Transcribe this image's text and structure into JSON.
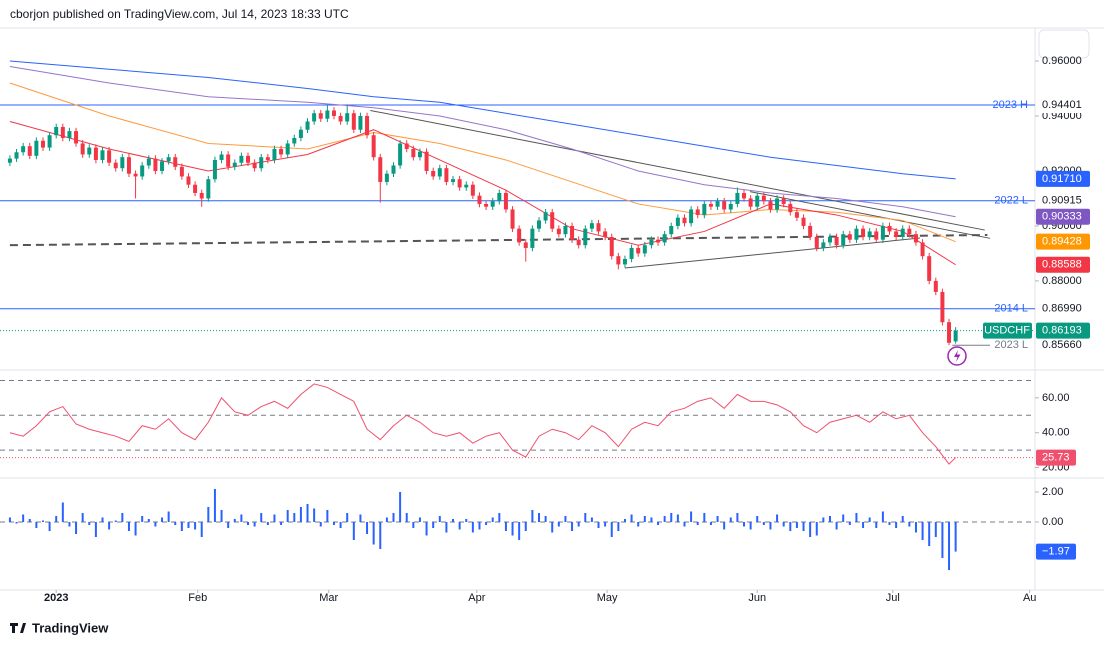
{
  "header": {
    "text": "cborjon published on TradingView.com, Jul 14, 2023 18:33 UTC"
  },
  "footer": {
    "brand": "TradingView"
  },
  "chart_data": {
    "type": "candlestick",
    "symbol": "USDCHF",
    "up_color": "#089981",
    "down_color": "#f23645",
    "xlim": [
      -1.5,
      155
    ],
    "xticks": [
      {
        "value": 7,
        "label": "2023"
      },
      {
        "value": 28.4,
        "label": "Feb"
      },
      {
        "value": 48.2,
        "label": "Mar"
      },
      {
        "value": 70.6,
        "label": "Apr"
      },
      {
        "value": 90.3,
        "label": "May"
      },
      {
        "value": 113,
        "label": "Jun"
      },
      {
        "value": 133.5,
        "label": "Jul"
      },
      {
        "value": 154.2,
        "label": "Au"
      }
    ],
    "ylim": [
      0.8476,
      0.972
    ],
    "yticks": [
      {
        "value": 0.96,
        "label": "0.96000"
      },
      {
        "value": 0.94,
        "label": "0.94000"
      },
      {
        "value": 0.92,
        "label": "0.92000"
      },
      {
        "value": 0.9,
        "label": "0.90000"
      },
      {
        "value": 0.88,
        "label": "0.88000"
      }
    ],
    "open": [
      0.923,
      0.9245,
      0.9268,
      0.929,
      0.9255,
      0.931,
      0.9285,
      0.933,
      0.936,
      0.932,
      0.9345,
      0.93,
      0.926,
      0.9285,
      0.924,
      0.9275,
      0.923,
      0.921,
      0.925,
      0.919,
      0.918,
      0.922,
      0.9245,
      0.92,
      0.9235,
      0.925,
      0.9215,
      0.918,
      0.915,
      0.912,
      0.91,
      0.917,
      0.924,
      0.926,
      0.9215,
      0.923,
      0.9255,
      0.923,
      0.921,
      0.925,
      0.924,
      0.928,
      0.926,
      0.93,
      0.932,
      0.935,
      0.938,
      0.941,
      0.939,
      0.942,
      0.94,
      0.938,
      0.941,
      0.935,
      0.94,
      0.933,
      0.925,
      0.916,
      0.919,
      0.922,
      0.93,
      0.928,
      0.925,
      0.927,
      0.92,
      0.918,
      0.921,
      0.916,
      0.917,
      0.914,
      0.915,
      0.911,
      0.908,
      0.907,
      0.909,
      0.912,
      0.906,
      0.899,
      0.894,
      0.892,
      0.899,
      0.902,
      0.905,
      0.899,
      0.897,
      0.9,
      0.895,
      0.893,
      0.899,
      0.901,
      0.898,
      0.896,
      0.889,
      0.886,
      0.888,
      0.892,
      0.89,
      0.893,
      0.895,
      0.894,
      0.897,
      0.9,
      0.903,
      0.901,
      0.906,
      0.904,
      0.908,
      0.907,
      0.909,
      0.906,
      0.908,
      0.912,
      0.91,
      0.907,
      0.911,
      0.909,
      0.906,
      0.91,
      0.908,
      0.905,
      0.903,
      0.9,
      0.896,
      0.892,
      0.894,
      0.896,
      0.893,
      0.897,
      0.895,
      0.899,
      0.896,
      0.898,
      0.895,
      0.9,
      0.898,
      0.896,
      0.899,
      0.897,
      0.894,
      0.889,
      0.88,
      0.876,
      0.865,
      0.858
    ],
    "high": [
      0.9257,
      0.928,
      0.9302,
      0.9302,
      0.9322,
      0.9322,
      0.9342,
      0.9372,
      0.9372,
      0.9357,
      0.9357,
      0.9312,
      0.9297,
      0.9297,
      0.9287,
      0.9287,
      0.9242,
      0.9262,
      0.9262,
      0.9202,
      0.9232,
      0.9257,
      0.9257,
      0.9247,
      0.9262,
      0.9262,
      0.9227,
      0.9192,
      0.9162,
      0.9132,
      0.9182,
      0.9252,
      0.9272,
      0.9272,
      0.9242,
      0.9267,
      0.9267,
      0.9242,
      0.9262,
      0.9262,
      0.9292,
      0.9292,
      0.9312,
      0.9332,
      0.9362,
      0.9392,
      0.9422,
      0.9422,
      0.944,
      0.9432,
      0.9412,
      0.944,
      0.9422,
      0.9412,
      0.9412,
      0.9342,
      0.9262,
      0.9202,
      0.9232,
      0.9312,
      0.9312,
      0.9292,
      0.9282,
      0.9282,
      0.9212,
      0.9222,
      0.9222,
      0.9182,
      0.9182,
      0.9162,
      0.9162,
      0.9122,
      0.9092,
      0.9102,
      0.9132,
      0.9132,
      0.9072,
      0.9002,
      0.8952,
      0.9002,
      0.9032,
      0.9062,
      0.9062,
      0.9002,
      0.9012,
      0.9012,
      0.8962,
      0.9002,
      0.9022,
      0.9022,
      0.8992,
      0.8972,
      0.8902,
      0.8892,
      0.8932,
      0.8932,
      0.8942,
      0.8962,
      0.8962,
      0.8982,
      0.9012,
      0.9042,
      0.9042,
      0.9072,
      0.9072,
      0.9092,
      0.9092,
      0.9102,
      0.9102,
      0.9092,
      0.914,
      0.9132,
      0.9112,
      0.9122,
      0.9122,
      0.9102,
      0.9112,
      0.9112,
      0.9092,
      0.9062,
      0.9042,
      0.9012,
      0.8972,
      0.8952,
      0.8972,
      0.8972,
      0.8982,
      0.8982,
      0.9002,
      0.9002,
      0.8992,
      0.8992,
      0.9012,
      0.9012,
      0.8992,
      0.9002,
      0.9002,
      0.8982,
      0.8952,
      0.8902,
      0.8812,
      0.8772,
      0.8662,
      0.8632
    ],
    "low": [
      0.9218,
      0.9233,
      0.9256,
      0.9243,
      0.9243,
      0.9273,
      0.9273,
      0.9318,
      0.9308,
      0.9308,
      0.9288,
      0.9248,
      0.9248,
      0.9228,
      0.9228,
      0.9218,
      0.9198,
      0.9198,
      0.9178,
      0.91,
      0.9168,
      0.9208,
      0.9188,
      0.9188,
      0.9223,
      0.9203,
      0.9168,
      0.9138,
      0.9108,
      0.907,
      0.9088,
      0.9158,
      0.9228,
      0.9203,
      0.9203,
      0.9218,
      0.9218,
      0.9198,
      0.9198,
      0.9228,
      0.9228,
      0.9248,
      0.9248,
      0.9288,
      0.9308,
      0.9338,
      0.9368,
      0.9378,
      0.9378,
      0.9388,
      0.9368,
      0.9368,
      0.9338,
      0.9338,
      0.9318,
      0.9238,
      0.9085,
      0.9148,
      0.9178,
      0.9208,
      0.9268,
      0.9238,
      0.9238,
      0.9188,
      0.9168,
      0.9168,
      0.9148,
      0.9148,
      0.9128,
      0.9128,
      0.9098,
      0.9068,
      0.9058,
      0.9058,
      0.9078,
      0.9048,
      0.8978,
      0.8928,
      0.887,
      0.8908,
      0.8978,
      0.9008,
      0.8978,
      0.8958,
      0.8958,
      0.8938,
      0.8918,
      0.8918,
      0.8978,
      0.8968,
      0.8948,
      0.8878,
      0.8842,
      0.8848,
      0.8868,
      0.8888,
      0.8888,
      0.8918,
      0.8928,
      0.8928,
      0.8958,
      0.8988,
      0.8998,
      0.8998,
      0.9028,
      0.9028,
      0.9058,
      0.9058,
      0.9048,
      0.9048,
      0.9068,
      0.9088,
      0.9058,
      0.9058,
      0.9078,
      0.9048,
      0.9048,
      0.9068,
      0.9038,
      0.9018,
      0.8988,
      0.8948,
      0.8908,
      0.8908,
      0.8928,
      0.8918,
      0.8918,
      0.8938,
      0.8938,
      0.8948,
      0.8948,
      0.8938,
      0.8938,
      0.8968,
      0.8948,
      0.8948,
      0.8958,
      0.8928,
      0.8878,
      0.8788,
      0.8748,
      0.8638,
      0.8566,
      0.8572
    ],
    "close": [
      0.9245,
      0.9268,
      0.929,
      0.9255,
      0.931,
      0.9285,
      0.933,
      0.936,
      0.932,
      0.9345,
      0.93,
      0.926,
      0.9285,
      0.924,
      0.9275,
      0.923,
      0.921,
      0.925,
      0.919,
      0.918,
      0.922,
      0.9245,
      0.92,
      0.9235,
      0.925,
      0.9215,
      0.918,
      0.915,
      0.912,
      0.91,
      0.917,
      0.924,
      0.926,
      0.9215,
      0.923,
      0.9255,
      0.923,
      0.921,
      0.925,
      0.924,
      0.928,
      0.926,
      0.93,
      0.932,
      0.935,
      0.938,
      0.941,
      0.939,
      0.942,
      0.94,
      0.938,
      0.941,
      0.935,
      0.94,
      0.933,
      0.925,
      0.916,
      0.919,
      0.922,
      0.93,
      0.928,
      0.925,
      0.927,
      0.92,
      0.918,
      0.921,
      0.916,
      0.917,
      0.914,
      0.915,
      0.911,
      0.908,
      0.907,
      0.909,
      0.912,
      0.906,
      0.899,
      0.894,
      0.892,
      0.899,
      0.902,
      0.905,
      0.899,
      0.897,
      0.9,
      0.895,
      0.893,
      0.899,
      0.901,
      0.898,
      0.896,
      0.889,
      0.886,
      0.888,
      0.892,
      0.89,
      0.893,
      0.895,
      0.894,
      0.897,
      0.9,
      0.903,
      0.901,
      0.906,
      0.904,
      0.908,
      0.907,
      0.909,
      0.906,
      0.908,
      0.912,
      0.91,
      0.907,
      0.911,
      0.909,
      0.906,
      0.91,
      0.908,
      0.905,
      0.903,
      0.9,
      0.896,
      0.892,
      0.894,
      0.896,
      0.893,
      0.897,
      0.895,
      0.899,
      0.896,
      0.898,
      0.895,
      0.9,
      0.898,
      0.896,
      0.899,
      0.897,
      0.894,
      0.889,
      0.88,
      0.876,
      0.865,
      0.8575,
      0.86193
    ],
    "moving_averages": [
      {
        "color": "#2962ff",
        "x": [
          0,
          15,
          30,
          45,
          55,
          65,
          75,
          85,
          95,
          105,
          115,
          125,
          135,
          143
        ],
        "values": [
          0.96,
          0.957,
          0.954,
          0.95,
          0.947,
          0.945,
          0.941,
          0.937,
          0.933,
          0.929,
          0.925,
          0.922,
          0.919,
          0.9171
        ]
      },
      {
        "color": "#9575cd",
        "x": [
          0,
          15,
          30,
          45,
          55,
          65,
          75,
          85,
          95,
          105,
          115,
          125,
          135,
          143
        ],
        "values": [
          0.958,
          0.952,
          0.947,
          0.945,
          0.943,
          0.94,
          0.935,
          0.928,
          0.92,
          0.915,
          0.912,
          0.91,
          0.907,
          0.90333
        ]
      },
      {
        "color": "#ff9a3d",
        "x": [
          0,
          15,
          30,
          45,
          55,
          65,
          75,
          85,
          95,
          105,
          115,
          125,
          135,
          143
        ],
        "values": [
          0.952,
          0.94,
          0.93,
          0.928,
          0.934,
          0.93,
          0.924,
          0.916,
          0.908,
          0.904,
          0.906,
          0.905,
          0.902,
          0.89428
        ]
      },
      {
        "color": "#f23645",
        "x": [
          0,
          15,
          30,
          45,
          55,
          65,
          75,
          85,
          95,
          105,
          115,
          125,
          135,
          143
        ],
        "values": [
          0.938,
          0.928,
          0.92,
          0.926,
          0.935,
          0.924,
          0.913,
          0.899,
          0.893,
          0.898,
          0.908,
          0.904,
          0.898,
          0.88588
        ]
      }
    ],
    "price_badges": [
      {
        "value": 0.9171,
        "label": "0.91710",
        "color": "#2962ff"
      },
      {
        "value": 0.90333,
        "color": "#7e57c2"
      },
      {
        "value": 0.89428,
        "color": "#ff9800"
      },
      {
        "value": 0.88588,
        "color": "#f23645"
      }
    ],
    "levels": [
      {
        "name": "2023 H",
        "value": 0.94401,
        "color": "#2962ff"
      },
      {
        "name": "2022 L",
        "value": 0.90915,
        "color": "#2962ff"
      },
      {
        "name": "2014 L",
        "value": 0.8699,
        "value_label": "0.86990",
        "color": "#2962ff"
      },
      {
        "name": "2023 L",
        "value": 0.8566,
        "value_label": "0.85660",
        "color": "#787b86"
      }
    ],
    "trendlines": [
      {
        "x": [
          0,
          147.8
        ],
        "values": [
          0.893,
          0.8967
        ],
        "color": "#555555",
        "dashed": true
      },
      {
        "x": [
          54.5,
          147.4
        ],
        "values": [
          0.942,
          0.8985
        ],
        "color": "#555555",
        "dashed": false
      },
      {
        "x": [
          111.9,
          148.2
        ],
        "values": [
          0.9125,
          0.8955
        ],
        "color": "#555555",
        "dashed": false
      },
      {
        "x": [
          93,
          137.6
        ],
        "values": [
          0.8847,
          0.8956
        ],
        "color": "#555555",
        "dashed": false
      }
    ],
    "rsi": {
      "color": "#f0506e",
      "ylim": [
        14,
        76
      ],
      "yticks": [
        {
          "value": 60,
          "label": "60.00"
        },
        {
          "value": 40,
          "label": "40.00"
        },
        {
          "value": 20,
          "label": "20.00"
        }
      ],
      "levels": [
        70,
        50,
        30
      ],
      "x": [
        0,
        2,
        4,
        6,
        8,
        10,
        12,
        14,
        16,
        18,
        20,
        22,
        24,
        26,
        28,
        30,
        32,
        34,
        36,
        38,
        40,
        42,
        44,
        46,
        48,
        50,
        52,
        54,
        56,
        58,
        60,
        62,
        64,
        66,
        68,
        70,
        72,
        74,
        76,
        78,
        80,
        82,
        84,
        86,
        88,
        90,
        92,
        94,
        96,
        98,
        100,
        102,
        104,
        106,
        108,
        110,
        112,
        114,
        116,
        118,
        120,
        122,
        124,
        126,
        128,
        130,
        132,
        134,
        136,
        138,
        140,
        142,
        143
      ],
      "values": [
        40,
        38,
        44,
        52,
        55,
        45,
        42,
        40,
        38,
        35,
        44,
        42,
        48,
        40,
        36,
        46,
        60,
        52,
        50,
        55,
        58,
        54,
        62,
        68,
        66,
        62,
        58,
        42,
        36,
        44,
        50,
        46,
        40,
        38,
        40,
        34,
        38,
        40,
        30,
        26,
        38,
        42,
        40,
        36,
        44,
        40,
        32,
        42,
        46,
        44,
        52,
        54,
        58,
        60,
        54,
        62,
        58,
        58,
        56,
        52,
        44,
        40,
        46,
        48,
        50,
        46,
        52,
        48,
        50,
        40,
        32,
        22,
        25.73
      ]
    },
    "macd": {
      "color": "#2962ff",
      "ylim": [
        -4.53,
        2.93
      ],
      "yticks": [
        {
          "value": 2,
          "label": "2.00"
        },
        {
          "value": 0,
          "label": "0.00"
        }
      ],
      "values": [
        0.3,
        -0.1,
        0.5,
        0.2,
        -0.4,
        0.1,
        -0.6,
        0.4,
        1.3,
        -0.3,
        -0.8,
        0.6,
        -0.2,
        -1.0,
        0.3,
        -0.5,
        0.1,
        0.6,
        -0.6,
        -0.9,
        0.4,
        0.2,
        -0.3,
        0.3,
        0.7,
        -0.2,
        -0.6,
        -0.4,
        -0.5,
        -1.0,
        1.0,
        2.2,
        0.8,
        -0.4,
        0.2,
        0.5,
        -0.2,
        -0.3,
        0.6,
        -0.2,
        0.5,
        -0.2,
        0.8,
        0.6,
        1.0,
        1.2,
        0.9,
        -0.3,
        0.8,
        -0.2,
        -0.4,
        0.6,
        -1.2,
        0.5,
        -0.8,
        -1.5,
        -1.8,
        0.3,
        0.6,
        2.0,
        0.6,
        -0.4,
        0.3,
        -0.9,
        -0.4,
        0.4,
        -0.7,
        0.2,
        -0.5,
        0.2,
        -0.7,
        -0.5,
        -0.2,
        0.3,
        0.6,
        -0.6,
        -0.9,
        -1.2,
        -0.6,
        0.8,
        0.6,
        0.4,
        -0.7,
        -0.3,
        0.4,
        -0.6,
        -0.3,
        0.6,
        0.3,
        -0.4,
        -0.3,
        -1.0,
        -0.6,
        0.2,
        0.5,
        -0.3,
        0.4,
        0.3,
        -0.2,
        0.4,
        0.6,
        0.5,
        -0.3,
        0.7,
        -0.2,
        0.6,
        -0.2,
        0.4,
        -0.5,
        0.3,
        0.6,
        -0.3,
        -0.5,
        0.4,
        -0.2,
        -0.5,
        0.5,
        -0.3,
        -0.6,
        -0.4,
        -0.6,
        -1.0,
        -0.9,
        0.3,
        0.4,
        -0.5,
        0.5,
        -0.2,
        0.6,
        -0.4,
        0.3,
        -0.4,
        0.7,
        -0.2,
        -0.4,
        0.4,
        -0.3,
        -0.7,
        -1.2,
        -1.6,
        -1.0,
        -2.4,
        -3.2,
        -1.97
      ],
      "value_labels": {
        "143": "−1.97"
      }
    }
  }
}
